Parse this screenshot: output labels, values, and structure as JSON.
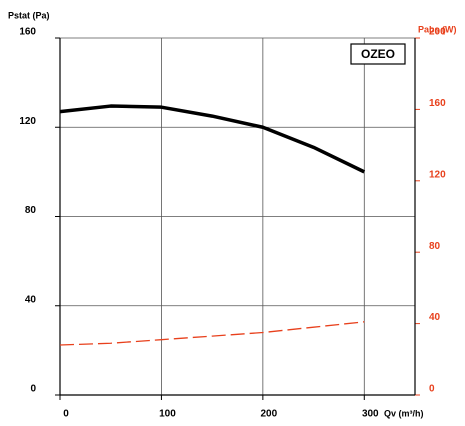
{
  "chart_data": {
    "type": "line",
    "y_label": "Pstat (Pa)",
    "y2_label": "Pabs (W)",
    "x_label": "Qv (m³/h)",
    "annotation": "OZEO",
    "x": [
      0,
      50,
      100,
      150,
      200,
      250,
      300
    ],
    "series": [
      {
        "color": "#000000",
        "values": [
          127,
          129.5,
          129,
          125,
          120,
          111,
          100
        ]
      },
      {
        "color": "#e8401c",
        "axis": "y2",
        "dashed": true,
        "values": [
          28,
          29,
          31,
          33,
          35,
          38,
          41
        ]
      }
    ],
    "xlim": [
      0,
      350
    ],
    "xticks": [
      0,
      100,
      200,
      300
    ],
    "ylim": [
      0,
      160
    ],
    "yticks": [
      0,
      40,
      80,
      120,
      160
    ],
    "y2lim": [
      0,
      200
    ],
    "y2ticks": [
      0,
      40,
      80,
      120,
      160,
      200
    ],
    "grid": true
  }
}
